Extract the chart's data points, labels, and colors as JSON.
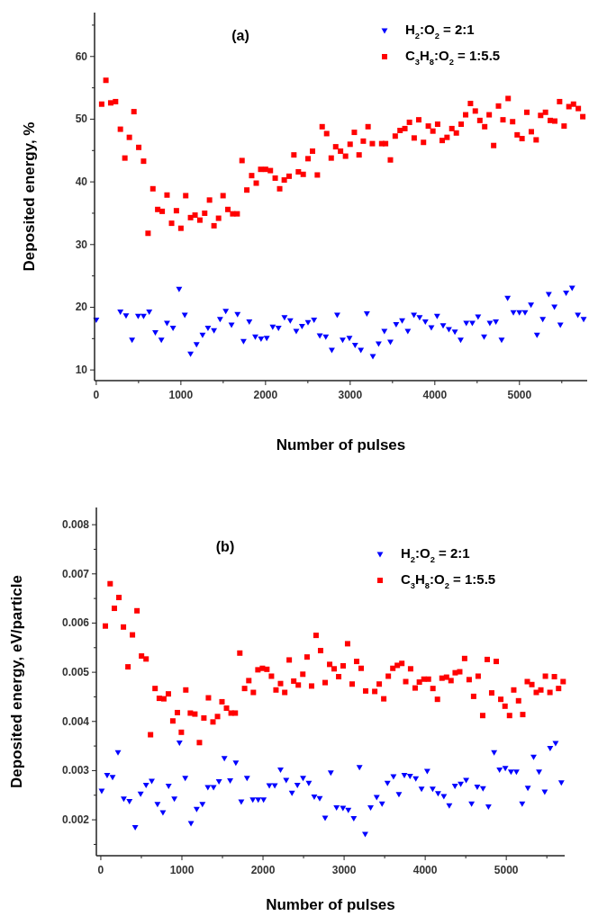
{
  "chart_data": [
    {
      "type": "scatter",
      "title": "(a)",
      "xlabel": "Number of pulses",
      "ylabel": "Deposited energy, %",
      "legend": "top right",
      "xlim": [
        -20,
        5800
      ],
      "xticks": [
        0,
        {
          "value": 500,
          "label": null
        },
        1000,
        {
          "value": 1500,
          "label": null
        },
        2000,
        {
          "value": 2500,
          "label": null
        },
        3000,
        {
          "value": 3500,
          "label": null
        },
        4000,
        {
          "value": 4500,
          "label": null
        },
        5000,
        {
          "value": 5500,
          "label": null
        }
      ],
      "ylim": [
        8.3,
        67
      ],
      "yticks": [
        10,
        {
          "value": 15,
          "label": null
        },
        20,
        {
          "value": 25,
          "label": null
        },
        30,
        {
          "value": 35,
          "label": null
        },
        40,
        {
          "value": 45,
          "label": null
        },
        50,
        {
          "value": 55,
          "label": null
        },
        60,
        {
          "value": 65,
          "label": null
        }
      ],
      "series": [
        {
          "name": "H$_{2}$:O$_{2}$ = 2:1",
          "color": "#0000ff",
          "marker": "triangle",
          "x": [
            0,
            285,
            352,
            423,
            495,
            559,
            626,
            698,
            769,
            836,
            907,
            979,
            1046,
            1114,
            1185,
            1256,
            1320,
            1391,
            1463,
            1530,
            1598,
            1669,
            1740,
            1808,
            1879,
            1947,
            2014,
            2085,
            2153,
            2224,
            2292,
            2363,
            2431,
            2502,
            2573,
            2641,
            2712,
            2783,
            2847,
            2911,
            2991,
            3058,
            3126,
            3197,
            3268,
            3336,
            3404,
            3475,
            3543,
            3614,
            3681,
            3753,
            3820,
            3888,
            3959,
            4027,
            4098,
            4166,
            4237,
            4305,
            4372,
            4443,
            4511,
            4582,
            4650,
            4721,
            4789,
            4860,
            4928,
            4999,
            5066,
            5136,
            5207,
            5275,
            5346,
            5413,
            5483,
            5551,
            5622,
            5690,
            5758
          ],
          "values": [
            18.0,
            19.3,
            18.7,
            14.8,
            18.6,
            18.6,
            19.3,
            16.0,
            14.8,
            17.5,
            16.7,
            22.9,
            18.8,
            12.6,
            14.1,
            15.6,
            16.7,
            16.3,
            18.1,
            19.4,
            17.2,
            18.9,
            14.6,
            17.7,
            15.3,
            15.0,
            15.1,
            16.9,
            16.7,
            18.4,
            17.9,
            16.2,
            17.0,
            17.6,
            18.0,
            15.5,
            15.3,
            13.2,
            18.8,
            14.8,
            15.1,
            14.0,
            13.2,
            19.0,
            12.2,
            14.2,
            16.2,
            14.5,
            17.3,
            17.9,
            16.2,
            18.8,
            18.4,
            17.7,
            16.8,
            18.6,
            17.1,
            16.5,
            16.1,
            14.8,
            17.5,
            17.5,
            18.5,
            15.3,
            17.5,
            17.7,
            14.8,
            21.5,
            19.2,
            19.2,
            19.2,
            20.4,
            15.6,
            18.1,
            22.1,
            20.1,
            17.2,
            22.3,
            23.1,
            18.8,
            18.1
          ]
        },
        {
          "name": "C$_{3}$H$_{8}$:O$_{2}$ = 1:5.5",
          "color": "#ff0000",
          "marker": "square",
          "x": [
            64,
            114,
            171,
            228,
            285,
            338,
            391,
            445,
            502,
            559,
            612,
            669,
            726,
            779,
            836,
            890,
            947,
            1000,
            1057,
            1114,
            1167,
            1224,
            1281,
            1338,
            1391,
            1445,
            1498,
            1555,
            1612,
            1665,
            1722,
            1779,
            1836,
            1890,
            1943,
            2000,
            2057,
            2114,
            2167,
            2221,
            2278,
            2335,
            2388,
            2445,
            2502,
            2555,
            2612,
            2669,
            2722,
            2776,
            2829,
            2886,
            2945,
            2999,
            3049,
            3105,
            3155,
            3211,
            3262,
            3372,
            3418,
            3475,
            3532,
            3589,
            3646,
            3700,
            3756,
            3810,
            3866,
            3923,
            3977,
            4033,
            4087,
            4144,
            4201,
            4254,
            4311,
            4364,
            4421,
            4478,
            4532,
            4589,
            4642,
            4695,
            4752,
            4805,
            4866,
            4919,
            4973,
            5030,
            5087,
            5140,
            5197,
            5250,
            5307,
            5364,
            5417,
            5474,
            5527,
            5584,
            5638,
            5695,
            5748
          ],
          "values": [
            52.4,
            56.2,
            52.6,
            52.8,
            48.4,
            43.8,
            47.1,
            51.2,
            45.5,
            43.3,
            31.8,
            38.9,
            35.6,
            35.3,
            37.9,
            33.4,
            35.4,
            32.6,
            37.8,
            34.3,
            34.7,
            33.9,
            35.0,
            37.1,
            33.0,
            34.2,
            37.8,
            35.6,
            34.9,
            34.9,
            43.4,
            38.7,
            41.0,
            39.8,
            42.0,
            42.0,
            41.8,
            40.6,
            38.9,
            40.3,
            40.9,
            44.3,
            41.6,
            41.2,
            43.7,
            44.9,
            41.1,
            48.8,
            47.7,
            43.8,
            45.6,
            44.9,
            44.1,
            46.0,
            47.9,
            44.3,
            46.5,
            48.8,
            46.1,
            46.1,
            46.1,
            43.5,
            47.3,
            48.2,
            48.5,
            49.5,
            47.0,
            49.9,
            46.3,
            48.9,
            48.1,
            49.2,
            46.6,
            47.1,
            48.5,
            47.8,
            49.2,
            50.7,
            52.5,
            51.3,
            49.8,
            48.8,
            50.7,
            45.8,
            52.1,
            49.9,
            53.3,
            49.6,
            47.5,
            46.9,
            51.1,
            48.0,
            46.7,
            50.6,
            51.1,
            49.8,
            49.7,
            52.8,
            48.9,
            52.0,
            52.4,
            51.7,
            50.4
          ]
        }
      ]
    },
    {
      "type": "scatter",
      "title": "(b)",
      "xlabel": "Number of pulses",
      "ylabel": "Deposited energy, eV/particle",
      "legend": "top right",
      "xlim": [
        -55,
        5720
      ],
      "xticks": [
        0,
        {
          "value": 500,
          "label": null
        },
        1000,
        {
          "value": 1500,
          "label": null
        },
        2000,
        {
          "value": 2500,
          "label": null
        },
        3000,
        {
          "value": 3500,
          "label": null
        },
        4000,
        {
          "value": 4500,
          "label": null
        },
        5000,
        {
          "value": 5500,
          "label": null
        }
      ],
      "ylim": [
        0.00127,
        0.00835
      ],
      "yticks": [
        {
          "value": 0.0015,
          "label": null
        },
        0.002,
        {
          "value": 0.0025,
          "label": null
        },
        0.003,
        {
          "value": 0.0035,
          "label": null
        },
        0.004,
        {
          "value": 0.0045,
          "label": null
        },
        0.005,
        {
          "value": 0.0055,
          "label": null
        },
        0.006,
        {
          "value": 0.0065,
          "label": null
        },
        0.007,
        {
          "value": 0.0075,
          "label": null
        },
        0.008
      ],
      "series": [
        {
          "name": "H$_{2}$:O$_{2}$ = 2:1",
          "color": "#0000ff",
          "marker": "triangle",
          "x": [
            11,
            78,
            145,
            212,
            283,
            353,
            424,
            491,
            558,
            628,
            699,
            766,
            836,
            907,
            970,
            1041,
            1112,
            1182,
            1253,
            1320,
            1390,
            1457,
            1524,
            1595,
            1665,
            1732,
            1803,
            1874,
            1941,
            2007,
            2078,
            2145,
            2216,
            2286,
            2357,
            2424,
            2494,
            2565,
            2632,
            2699,
            2766,
            2836,
            2907,
            2986,
            3052,
            3119,
            3190,
            3260,
            3327,
            3402,
            3468,
            3535,
            3609,
            3676,
            3743,
            3813,
            3884,
            3955,
            4025,
            4092,
            4159,
            4230,
            4297,
            4367,
            4438,
            4505,
            4572,
            4642,
            4713,
            4780,
            4850,
            4917,
            4988,
            5058,
            5125,
            5196,
            5266,
            5337,
            5404,
            5474,
            5541,
            5608,
            5679
          ],
          "values": [
            0.00259,
            0.00291,
            0.00287,
            0.00337,
            0.00243,
            0.00238,
            0.00185,
            0.00253,
            0.00271,
            0.00279,
            0.00232,
            0.00215,
            0.00269,
            0.00243,
            0.00357,
            0.00285,
            0.00193,
            0.00222,
            0.00232,
            0.00266,
            0.00266,
            0.00278,
            0.00325,
            0.0028,
            0.00316,
            0.00237,
            0.00285,
            0.00241,
            0.00241,
            0.00241,
            0.0027,
            0.0027,
            0.00302,
            0.00281,
            0.00255,
            0.00271,
            0.00285,
            0.00275,
            0.00247,
            0.00244,
            0.00204,
            0.00296,
            0.00225,
            0.00224,
            0.0022,
            0.00203,
            0.00307,
            0.00171,
            0.00225,
            0.00246,
            0.00233,
            0.00275,
            0.00288,
            0.00252,
            0.00291,
            0.00289,
            0.00284,
            0.00263,
            0.00299,
            0.00263,
            0.00254,
            0.00248,
            0.00229,
            0.00269,
            0.00273,
            0.00281,
            0.00233,
            0.00267,
            0.00264,
            0.00227,
            0.00337,
            0.00302,
            0.00305,
            0.00298,
            0.00298,
            0.00233,
            0.00265,
            0.00328,
            0.00298,
            0.00257,
            0.00346,
            0.00356,
            0.00276
          ]
        },
        {
          "name": "C$_{3}$H$_{8}$:O$_{2}$ = 1:5.5",
          "color": "#ff0000",
          "marker": "square",
          "x": [
            56,
            115,
            167,
            223,
            279,
            335,
            390,
            446,
            502,
            558,
            613,
            669,
            721,
            777,
            833,
            888,
            944,
            993,
            1048,
            1104,
            1160,
            1216,
            1271,
            1327,
            1383,
            1439,
            1494,
            1550,
            1606,
            1658,
            1714,
            1773,
            1825,
            1881,
            1937,
            1993,
            2048,
            2104,
            2160,
            2216,
            2268,
            2323,
            2379,
            2435,
            2491,
            2543,
            2599,
            2654,
            2710,
            2766,
            2822,
            2877,
            2933,
            2988,
            3043,
            3099,
            3155,
            3210,
            3266,
            3378,
            3433,
            3489,
            3545,
            3601,
            3656,
            3712,
            3760,
            3820,
            3876,
            3928,
            3984,
            4040,
            4095,
            4151,
            4207,
            4263,
            4318,
            4370,
            4426,
            4486,
            4542,
            4597,
            4653,
            4709,
            4765,
            4820,
            4876,
            4932,
            4984,
            5040,
            5092,
            5151,
            5203,
            5259,
            5315,
            5370,
            5426,
            5482,
            5538,
            5593,
            5645,
            5701
          ],
          "values": [
            0.00594,
            0.0068,
            0.0063,
            0.00652,
            0.00592,
            0.00511,
            0.00576,
            0.00625,
            0.00533,
            0.00527,
            0.00373,
            0.00467,
            0.00447,
            0.00446,
            0.00456,
            0.00401,
            0.00418,
            0.00378,
            0.00464,
            0.00417,
            0.00415,
            0.00357,
            0.00407,
            0.00448,
            0.00399,
            0.0041,
            0.0044,
            0.00427,
            0.00417,
            0.00417,
            0.00539,
            0.00467,
            0.00483,
            0.00459,
            0.00505,
            0.00508,
            0.00506,
            0.00492,
            0.00464,
            0.00477,
            0.00459,
            0.00525,
            0.00482,
            0.00474,
            0.00496,
            0.00531,
            0.00472,
            0.00575,
            0.00544,
            0.00479,
            0.00516,
            0.00507,
            0.00491,
            0.00513,
            0.00558,
            0.00476,
            0.00522,
            0.00508,
            0.00462,
            0.00461,
            0.00476,
            0.00446,
            0.00492,
            0.00508,
            0.00514,
            0.00518,
            0.00481,
            0.00507,
            0.00468,
            0.0048,
            0.00486,
            0.00486,
            0.00467,
            0.00445,
            0.00488,
            0.0049,
            0.00483,
            0.00499,
            0.00501,
            0.00528,
            0.00485,
            0.00451,
            0.00492,
            0.00412,
            0.00526,
            0.00458,
            0.00522,
            0.00445,
            0.00431,
            0.00412,
            0.00464,
            0.00442,
            0.00414,
            0.00481,
            0.00475,
            0.00459,
            0.00464,
            0.00492,
            0.00459,
            0.00491,
            0.00467,
            0.00481
          ]
        }
      ]
    }
  ]
}
